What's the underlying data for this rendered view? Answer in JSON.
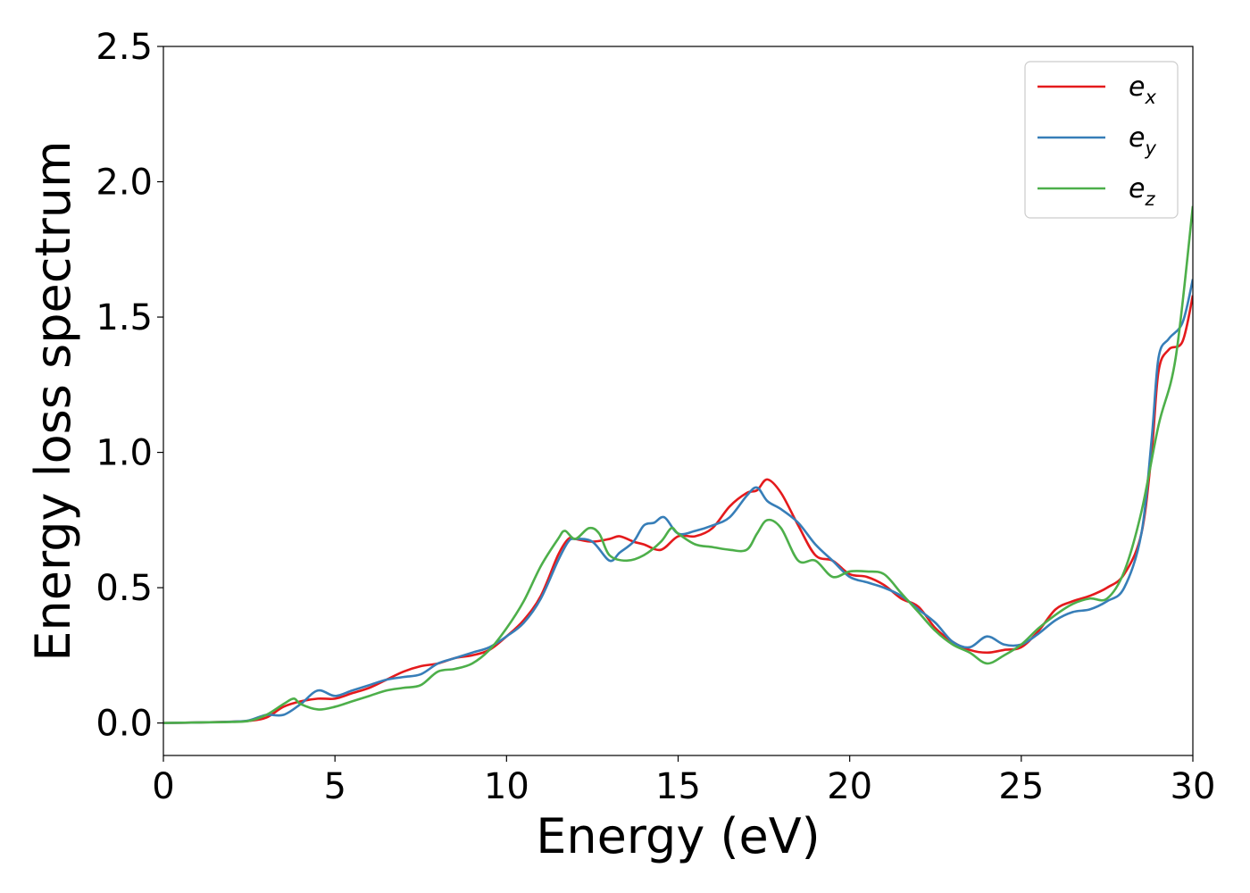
{
  "chart_data": {
    "type": "line",
    "xlabel": "Energy (eV)",
    "ylabel": "Energy loss spectrum",
    "xlim": [
      0,
      30
    ],
    "ylim": [
      -0.12,
      2.5
    ],
    "xticks": [
      "0",
      "5",
      "10",
      "15",
      "20",
      "25",
      "30"
    ],
    "yticks": [
      "0.0",
      "0.5",
      "1.0",
      "1.5",
      "2.0",
      "2.5"
    ],
    "grid": false,
    "legend_position": "top-right",
    "series": [
      {
        "name": "e_x",
        "legend_base": "e",
        "legend_sub": "x",
        "color": "#e41a1c",
        "x": [
          0,
          1,
          2,
          2.5,
          3,
          3.5,
          4,
          4.5,
          5,
          5.5,
          6,
          6.5,
          7,
          7.5,
          8,
          8.5,
          9,
          9.5,
          10,
          10.5,
          11,
          11.5,
          11.8,
          12,
          12.5,
          13,
          13.3,
          13.7,
          14,
          14.5,
          15,
          15.5,
          16,
          16.5,
          17,
          17.3,
          17.6,
          18,
          18.5,
          19,
          19.5,
          20,
          20.5,
          21,
          21.5,
          22,
          22.5,
          23,
          23.5,
          24,
          24.5,
          25,
          25.5,
          26,
          26.5,
          27,
          27.5,
          28,
          28.5,
          28.8,
          29,
          29.3,
          29.7,
          30
        ],
        "y": [
          0,
          0.002,
          0.005,
          0.008,
          0.02,
          0.06,
          0.08,
          0.09,
          0.09,
          0.11,
          0.13,
          0.16,
          0.19,
          0.21,
          0.22,
          0.24,
          0.25,
          0.27,
          0.32,
          0.38,
          0.47,
          0.62,
          0.68,
          0.68,
          0.67,
          0.68,
          0.69,
          0.67,
          0.66,
          0.64,
          0.69,
          0.69,
          0.72,
          0.8,
          0.85,
          0.86,
          0.9,
          0.85,
          0.73,
          0.62,
          0.6,
          0.55,
          0.54,
          0.51,
          0.46,
          0.43,
          0.35,
          0.3,
          0.27,
          0.26,
          0.27,
          0.28,
          0.34,
          0.42,
          0.45,
          0.47,
          0.5,
          0.55,
          0.7,
          1.0,
          1.3,
          1.38,
          1.41,
          1.58
        ]
      },
      {
        "name": "e_y",
        "legend_base": "e",
        "legend_sub": "y",
        "color": "#377eb8",
        "x": [
          0,
          1,
          2,
          2.5,
          3,
          3.5,
          4,
          4.5,
          5,
          5.5,
          6,
          6.5,
          7,
          7.5,
          8,
          8.5,
          9,
          9.5,
          10,
          10.5,
          11,
          11.5,
          11.8,
          12,
          12.5,
          13,
          13.3,
          13.7,
          14,
          14.3,
          14.6,
          15,
          15.5,
          16,
          16.5,
          17,
          17.3,
          17.6,
          18,
          18.5,
          19,
          19.5,
          20,
          20.5,
          21,
          21.5,
          22,
          22.5,
          23,
          23.5,
          24,
          24.5,
          25,
          25.5,
          26,
          26.5,
          27,
          27.5,
          28,
          28.5,
          28.8,
          29,
          29.3,
          29.7,
          30
        ],
        "y": [
          0,
          0.002,
          0.005,
          0.01,
          0.03,
          0.03,
          0.07,
          0.12,
          0.1,
          0.12,
          0.14,
          0.16,
          0.17,
          0.18,
          0.22,
          0.24,
          0.26,
          0.28,
          0.32,
          0.37,
          0.46,
          0.6,
          0.67,
          0.68,
          0.67,
          0.6,
          0.63,
          0.67,
          0.73,
          0.74,
          0.76,
          0.7,
          0.71,
          0.73,
          0.76,
          0.84,
          0.87,
          0.82,
          0.79,
          0.74,
          0.66,
          0.6,
          0.54,
          0.52,
          0.5,
          0.47,
          0.42,
          0.37,
          0.3,
          0.28,
          0.32,
          0.29,
          0.29,
          0.33,
          0.38,
          0.41,
          0.42,
          0.45,
          0.5,
          0.7,
          1.05,
          1.35,
          1.42,
          1.48,
          1.64
        ]
      },
      {
        "name": "e_z",
        "legend_base": "e",
        "legend_sub": "z",
        "color": "#4daf4a",
        "x": [
          0,
          1,
          2,
          2.5,
          3,
          3.5,
          3.8,
          4,
          4.5,
          5,
          5.5,
          6,
          6.5,
          7,
          7.5,
          8,
          8.5,
          9,
          9.5,
          10,
          10.5,
          11,
          11.5,
          11.7,
          12,
          12.4,
          12.7,
          13,
          13.5,
          14,
          14.5,
          14.8,
          15,
          15.5,
          16,
          16.5,
          17,
          17.3,
          17.6,
          18,
          18.5,
          19,
          19.5,
          20,
          20.5,
          21,
          21.5,
          22,
          22.5,
          23,
          23.5,
          24,
          24.5,
          25,
          25.5,
          26,
          26.5,
          27,
          27.5,
          28,
          28.5,
          29,
          29.5,
          30
        ],
        "y": [
          0,
          0.002,
          0.004,
          0.008,
          0.03,
          0.07,
          0.09,
          0.07,
          0.05,
          0.06,
          0.08,
          0.1,
          0.12,
          0.13,
          0.14,
          0.19,
          0.2,
          0.22,
          0.27,
          0.35,
          0.45,
          0.58,
          0.68,
          0.71,
          0.68,
          0.72,
          0.7,
          0.62,
          0.6,
          0.62,
          0.67,
          0.72,
          0.7,
          0.66,
          0.65,
          0.64,
          0.64,
          0.7,
          0.75,
          0.72,
          0.6,
          0.6,
          0.54,
          0.56,
          0.56,
          0.55,
          0.48,
          0.41,
          0.34,
          0.29,
          0.26,
          0.22,
          0.25,
          0.29,
          0.35,
          0.4,
          0.44,
          0.46,
          0.46,
          0.56,
          0.78,
          1.1,
          1.35,
          1.91
        ]
      }
    ]
  }
}
